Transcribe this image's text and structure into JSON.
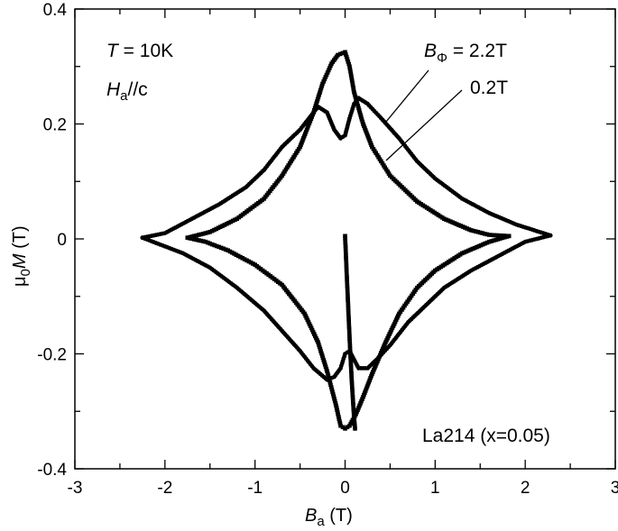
{
  "chart_data": {
    "type": "scatter",
    "xlim": [
      -3,
      3
    ],
    "ylim": [
      -0.4,
      0.4
    ],
    "x_ticks": [
      "-3",
      "-2",
      "-1",
      "0",
      "1",
      "2",
      "3"
    ],
    "y_ticks": [
      "0.4",
      "0.2",
      "0",
      "-0.2",
      "-0.4"
    ],
    "xlabel": {
      "symbol": "B",
      "sub": "a",
      "unit": " (T)"
    },
    "ylabel": {
      "prefix": "μ",
      "sub": "0",
      "symbol": "M",
      "unit": " (T)"
    },
    "annotations": {
      "temperature": {
        "symbol": "T",
        "text": " = 10K"
      },
      "field_direction": {
        "symbol": "H",
        "sub": "a",
        "text": "//c"
      },
      "sample": "La214 (x=0.05)"
    },
    "grid": false,
    "legend": "none",
    "series": [
      {
        "name": "BΦ = 2.2T",
        "label_symbol": "B",
        "label_sub": "Φ",
        "label_text": " = 2.2T",
        "marker": "circle",
        "color": "#000000",
        "upper_branch": [
          [
            -2.25,
            0.002
          ],
          [
            -2.0,
            0.01
          ],
          [
            -1.7,
            0.035
          ],
          [
            -1.4,
            0.06
          ],
          [
            -1.1,
            0.09
          ],
          [
            -0.9,
            0.12
          ],
          [
            -0.7,
            0.16
          ],
          [
            -0.5,
            0.19
          ],
          [
            -0.4,
            0.21
          ],
          [
            -0.3,
            0.23
          ],
          [
            -0.2,
            0.22
          ],
          [
            -0.12,
            0.19
          ],
          [
            -0.05,
            0.175
          ],
          [
            0.0,
            0.18
          ],
          [
            0.05,
            0.21
          ],
          [
            0.1,
            0.235
          ],
          [
            0.15,
            0.245
          ],
          [
            0.25,
            0.235
          ],
          [
            0.4,
            0.21
          ],
          [
            0.6,
            0.175
          ],
          [
            0.8,
            0.135
          ],
          [
            1.0,
            0.105
          ],
          [
            1.3,
            0.07
          ],
          [
            1.6,
            0.045
          ],
          [
            1.9,
            0.025
          ],
          [
            2.1,
            0.015
          ],
          [
            2.28,
            0.006
          ]
        ],
        "lower_branch": [
          [
            2.28,
            0.006
          ],
          [
            2.0,
            -0.005
          ],
          [
            1.7,
            -0.03
          ],
          [
            1.4,
            -0.055
          ],
          [
            1.1,
            -0.085
          ],
          [
            0.9,
            -0.115
          ],
          [
            0.7,
            -0.145
          ],
          [
            0.5,
            -0.185
          ],
          [
            0.35,
            -0.21
          ],
          [
            0.25,
            -0.225
          ],
          [
            0.15,
            -0.225
          ],
          [
            0.1,
            -0.21
          ],
          [
            0.05,
            -0.195
          ],
          [
            0.0,
            -0.2
          ],
          [
            -0.05,
            -0.225
          ],
          [
            -0.12,
            -0.24
          ],
          [
            -0.2,
            -0.245
          ],
          [
            -0.35,
            -0.225
          ],
          [
            -0.5,
            -0.195
          ],
          [
            -0.7,
            -0.16
          ],
          [
            -0.9,
            -0.125
          ],
          [
            -1.2,
            -0.085
          ],
          [
            -1.5,
            -0.05
          ],
          [
            -1.8,
            -0.025
          ],
          [
            -2.05,
            -0.01
          ],
          [
            -2.25,
            0.002
          ]
        ]
      },
      {
        "name": "0.2T",
        "label_text": "0.2T",
        "marker": "square",
        "color": "#000000",
        "upper_branch": [
          [
            -1.75,
            0.002
          ],
          [
            -1.5,
            0.012
          ],
          [
            -1.2,
            0.035
          ],
          [
            -0.9,
            0.07
          ],
          [
            -0.7,
            0.11
          ],
          [
            -0.5,
            0.16
          ],
          [
            -0.35,
            0.22
          ],
          [
            -0.25,
            0.27
          ],
          [
            -0.15,
            0.305
          ],
          [
            -0.08,
            0.32
          ],
          [
            0.0,
            0.325
          ],
          [
            0.05,
            0.3
          ],
          [
            0.1,
            0.255
          ],
          [
            0.2,
            0.2
          ],
          [
            0.3,
            0.16
          ],
          [
            0.5,
            0.11
          ],
          [
            0.8,
            0.065
          ],
          [
            1.1,
            0.035
          ],
          [
            1.4,
            0.015
          ],
          [
            1.6,
            0.007
          ],
          [
            1.82,
            0.005
          ]
        ],
        "lower_branch": [
          [
            1.82,
            0.005
          ],
          [
            1.6,
            -0.005
          ],
          [
            1.3,
            -0.025
          ],
          [
            1.0,
            -0.055
          ],
          [
            0.8,
            -0.085
          ],
          [
            0.6,
            -0.13
          ],
          [
            0.45,
            -0.18
          ],
          [
            0.3,
            -0.235
          ],
          [
            0.2,
            -0.275
          ],
          [
            0.12,
            -0.305
          ],
          [
            0.05,
            -0.325
          ],
          [
            0.0,
            -0.33
          ],
          [
            -0.05,
            -0.325
          ],
          [
            -0.1,
            -0.29
          ],
          [
            -0.2,
            -0.23
          ],
          [
            -0.3,
            -0.18
          ],
          [
            -0.45,
            -0.13
          ],
          [
            -0.7,
            -0.08
          ],
          [
            -1.0,
            -0.045
          ],
          [
            -1.3,
            -0.02
          ],
          [
            -1.55,
            -0.005
          ],
          [
            -1.75,
            0.002
          ]
        ]
      }
    ],
    "virgin_curve": {
      "marker": "square",
      "points": [
        [
          0.0,
          0.005
        ],
        [
          0.015,
          -0.05
        ],
        [
          0.035,
          -0.12
        ],
        [
          0.055,
          -0.19
        ],
        [
          0.075,
          -0.25
        ],
        [
          0.095,
          -0.3
        ],
        [
          0.11,
          -0.33
        ]
      ]
    }
  }
}
